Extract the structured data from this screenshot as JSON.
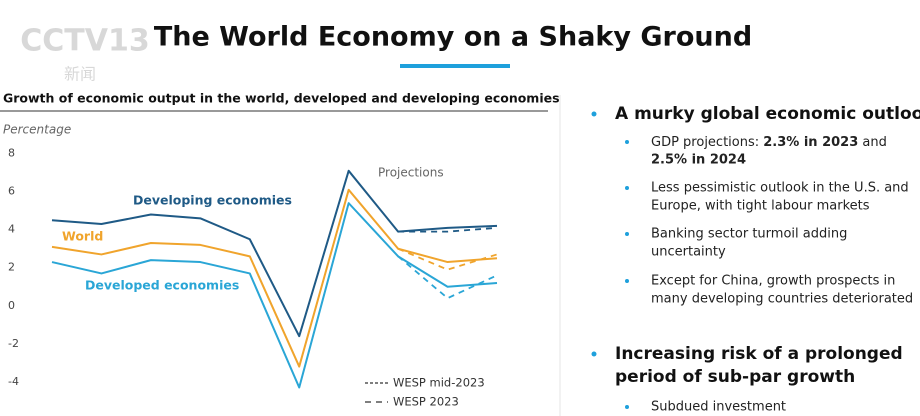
{
  "header": {
    "logo": "CCTV13",
    "logo_sub": "新闻",
    "title": "The World Economy on a Shaky Ground"
  },
  "chart_data": {
    "type": "line",
    "title": "Growth of economic output in the world, developed and developing economies",
    "y_label": "Percentage",
    "annotation": "Projections",
    "categories": [
      null,
      null,
      null,
      null,
      null,
      null,
      null,
      null,
      null,
      null
    ],
    "ylim": [
      -5.8,
      8.3
    ],
    "yticks": [
      8,
      6,
      4,
      2,
      0,
      -2,
      -4
    ],
    "grid": false,
    "series": [
      {
        "name": "Developing economies",
        "color": "#1f5a86",
        "values": [
          4.5,
          4.3,
          4.8,
          4.6,
          3.5,
          -1.6,
          7.1,
          3.9,
          4.1,
          4.2
        ],
        "alt_values": [
          null,
          null,
          null,
          null,
          null,
          null,
          null,
          3.9,
          3.9,
          4.1
        ]
      },
      {
        "name": "World",
        "color": "#f0a42c",
        "values": [
          3.1,
          2.7,
          3.3,
          3.2,
          2.6,
          -3.2,
          6.1,
          3.0,
          2.3,
          2.5
        ],
        "alt_values": [
          null,
          null,
          null,
          null,
          null,
          null,
          null,
          3.0,
          1.9,
          2.7
        ]
      },
      {
        "name": "Developed economies",
        "color": "#2aa6d6",
        "values": [
          2.3,
          1.7,
          2.4,
          2.3,
          1.7,
          -4.3,
          5.4,
          2.6,
          1.0,
          1.2
        ],
        "alt_values": [
          null,
          null,
          null,
          null,
          null,
          null,
          null,
          2.6,
          0.4,
          1.6
        ]
      }
    ],
    "legend": [
      {
        "name": "WESP mid-2023",
        "dash": "3 2"
      },
      {
        "name": "WESP 2023",
        "dash": "6 5"
      }
    ]
  },
  "bullets": {
    "section1": "A murky global economic outlook",
    "gdp": {
      "text": "GDP projections: ",
      "bold1": "2.3% in 2023",
      "and": " and",
      "bold2": "2.5% in 2024"
    },
    "items": [
      [
        "Less pessimistic outlook in the U.S. and",
        "Europe, with tight labour markets"
      ],
      [
        "Banking sector turmoil adding",
        "uncertainty"
      ],
      [
        "Except for China, growth prospects in",
        "many developing countries deteriorated"
      ]
    ],
    "section2": [
      "Increasing risk of a prolonged",
      "period of sub-par growth"
    ],
    "item2": "Subdued investment"
  }
}
